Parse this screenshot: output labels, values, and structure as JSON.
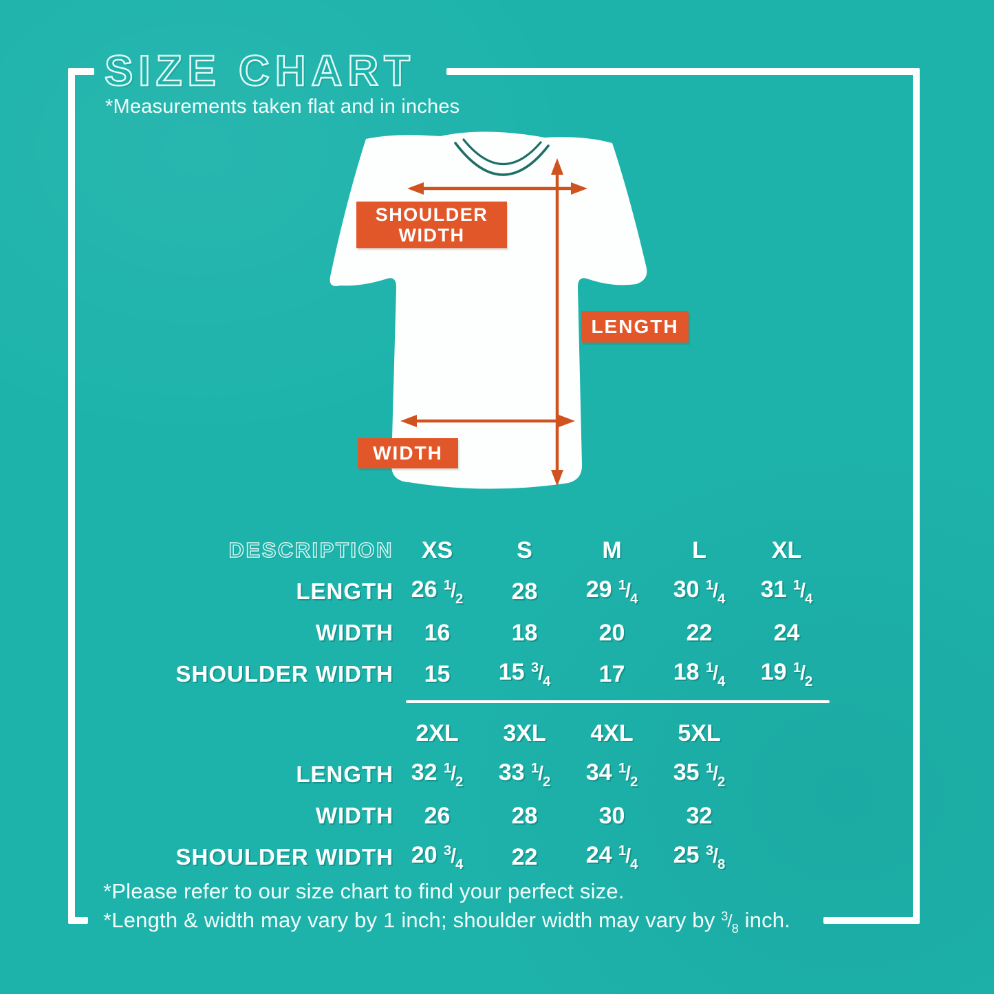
{
  "page": {
    "title": "SIZE CHART",
    "subtitle": "*Measurements taken flat and in inches"
  },
  "diagram": {
    "shoulder_label_line1": "SHOULDER",
    "shoulder_label_line2": "WIDTH",
    "length_label": "LENGTH",
    "width_label": "WIDTH"
  },
  "table": {
    "section1": {
      "description_label": "DESCRIPTION",
      "columns": [
        "XS",
        "S",
        "M",
        "L",
        "XL"
      ],
      "rows": [
        {
          "label": "LENGTH",
          "values": [
            "26 1/2",
            "28",
            "29 1/4",
            "30 1/4",
            "31 1/4"
          ]
        },
        {
          "label": "WIDTH",
          "values": [
            "16",
            "18",
            "20",
            "22",
            "24"
          ]
        },
        {
          "label": "SHOULDER WIDTH",
          "values": [
            "15",
            "15 3/4",
            "17",
            "18 1/4",
            "19 1/2"
          ]
        }
      ]
    },
    "section2": {
      "columns": [
        "2XL",
        "3XL",
        "4XL",
        "5XL"
      ],
      "rows": [
        {
          "label": "LENGTH",
          "values": [
            "32 1/2",
            "33 1/2",
            "34 1/2",
            "35 1/2"
          ]
        },
        {
          "label": "WIDTH",
          "values": [
            "26",
            "28",
            "30",
            "32"
          ]
        },
        {
          "label": "SHOULDER WIDTH",
          "values": [
            "20 3/4",
            "22",
            "24 1/4",
            "25 3/8"
          ]
        }
      ]
    }
  },
  "footer": {
    "note1": "*Please refer to our size chart to find your perfect size.",
    "note2_prefix": "*Length & width may vary by 1 inch; shoulder width may vary by ",
    "note2_frac_num": "3",
    "note2_frac_den": "8",
    "note2_suffix": " inch."
  },
  "colors": {
    "background": "#1db3ab",
    "accent_orange": "#e2572a",
    "arrow_orange": "#d0521f",
    "text_white": "#fdfffe",
    "collar_teal": "#1d6e67"
  }
}
